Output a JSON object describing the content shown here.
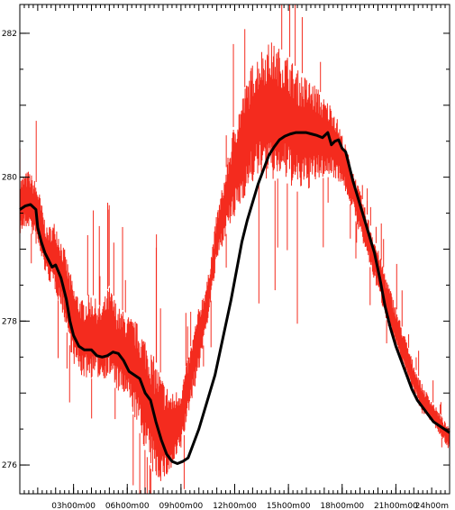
{
  "chart_data": {
    "type": "line",
    "title": "",
    "xlabel": "",
    "ylabel": "",
    "xlim": [
      0,
      24
    ],
    "ylim": [
      275.6,
      282.4
    ],
    "x_ticks": [
      {
        "value": 3,
        "label": "03h00m00"
      },
      {
        "value": 6,
        "label": "06h00m00"
      },
      {
        "value": 9,
        "label": "09h00m00"
      },
      {
        "value": 12,
        "label": "12h00m00"
      },
      {
        "value": 15,
        "label": "15h00m00"
      },
      {
        "value": 18,
        "label": "18h00m00"
      },
      {
        "value": 21,
        "label": "21h00m00"
      },
      {
        "value": 24,
        "label": "24h00m"
      }
    ],
    "y_ticks": [
      {
        "value": 276,
        "label": "276"
      },
      {
        "value": 278,
        "label": "278"
      },
      {
        "value": 280,
        "label": "280"
      },
      {
        "value": 282,
        "label": "282"
      }
    ],
    "grid": false,
    "series": [
      {
        "color": "#f42b1e",
        "style": "high-frequency",
        "x": [
          0,
          0.5,
          1,
          1.5,
          2,
          2.5,
          3,
          3.5,
          4,
          4.5,
          5,
          5.5,
          6,
          6.5,
          7,
          7.5,
          8,
          8.5,
          9,
          9.5,
          10,
          10.5,
          11,
          11.5,
          12,
          12.5,
          13,
          13.5,
          14,
          14.5,
          15,
          15.5,
          16,
          16.5,
          17,
          17.5,
          18,
          18.5,
          19,
          19.5,
          20,
          20.5,
          21,
          21.5,
          22,
          22.5,
          23,
          23.5,
          24
        ],
        "lower": [
          279.2,
          279.3,
          279.0,
          278.6,
          278.4,
          278.0,
          277.4,
          277.2,
          277.2,
          277.2,
          277.2,
          277.0,
          276.9,
          276.6,
          276.2,
          275.8,
          275.75,
          275.9,
          276.2,
          276.8,
          277.3,
          278.0,
          278.8,
          279.2,
          279.4,
          279.7,
          279.9,
          280.0,
          279.9,
          280.0,
          279.9,
          279.8,
          279.8,
          279.9,
          280.0,
          280.0,
          279.9,
          279.6,
          279.2,
          278.8,
          278.4,
          278.0,
          277.6,
          277.3,
          277.0,
          276.7,
          276.6,
          276.4,
          276.2
        ],
        "upper": [
          280.0,
          280.1,
          279.9,
          279.3,
          279.4,
          279.0,
          278.5,
          278.3,
          278.4,
          278.2,
          278.5,
          278.2,
          278.1,
          278.0,
          277.8,
          277.5,
          277.2,
          277.0,
          277.1,
          277.6,
          278.2,
          278.6,
          279.5,
          280.1,
          280.8,
          281.2,
          281.6,
          281.8,
          281.9,
          281.8,
          281.7,
          281.5,
          281.4,
          281.3,
          281.1,
          281.0,
          280.6,
          280.2,
          279.8,
          279.4,
          279.0,
          278.6,
          278.2,
          277.8,
          277.4,
          277.1,
          276.9,
          276.7,
          276.5
        ]
      },
      {
        "color": "#000000",
        "style": "smooth",
        "x": [
          0,
          0.3,
          0.6,
          0.9,
          1.0,
          1.2,
          1.4,
          1.6,
          1.8,
          2.0,
          2.3,
          2.6,
          2.8,
          3.0,
          3.3,
          3.6,
          4.0,
          4.3,
          4.6,
          4.9,
          5.2,
          5.5,
          5.8,
          6.1,
          6.4,
          6.7,
          7.0,
          7.3,
          7.6,
          7.9,
          8.2,
          8.5,
          8.8,
          9.1,
          9.4,
          9.7,
          10.0,
          10.3,
          10.6,
          10.9,
          11.2,
          11.5,
          11.8,
          12.1,
          12.4,
          12.7,
          13.0,
          13.3,
          13.6,
          13.9,
          14.2,
          14.5,
          14.8,
          15.1,
          15.4,
          15.7,
          16.0,
          16.3,
          16.6,
          16.9,
          17.2,
          17.4,
          17.6,
          17.8,
          18.0,
          18.2,
          18.4,
          18.6,
          18.9,
          19.2,
          19.5,
          19.8,
          20.1,
          20.4,
          20.7,
          21.0,
          21.3,
          21.6,
          21.9,
          22.2,
          22.5,
          22.8,
          23.1,
          23.4,
          23.7,
          24.0
        ],
        "y": [
          279.55,
          279.6,
          279.62,
          279.55,
          279.3,
          279.1,
          278.95,
          278.85,
          278.75,
          278.78,
          278.6,
          278.3,
          278.0,
          277.8,
          277.65,
          277.6,
          277.6,
          277.52,
          277.5,
          277.52,
          277.57,
          277.55,
          277.45,
          277.3,
          277.25,
          277.2,
          277.0,
          276.9,
          276.6,
          276.35,
          276.15,
          276.05,
          276.02,
          276.05,
          276.1,
          276.3,
          276.5,
          276.75,
          277.0,
          277.25,
          277.6,
          277.95,
          278.3,
          278.7,
          279.1,
          279.4,
          279.65,
          279.9,
          280.1,
          280.3,
          280.42,
          280.52,
          280.57,
          280.6,
          280.62,
          280.62,
          280.62,
          280.6,
          280.58,
          280.55,
          280.62,
          280.45,
          280.5,
          280.52,
          280.4,
          280.35,
          280.15,
          279.95,
          279.7,
          279.45,
          279.2,
          278.95,
          278.6,
          278.2,
          277.9,
          277.65,
          277.45,
          277.25,
          277.05,
          276.9,
          276.8,
          276.7,
          276.6,
          276.55,
          276.5,
          276.45
        ]
      }
    ]
  }
}
